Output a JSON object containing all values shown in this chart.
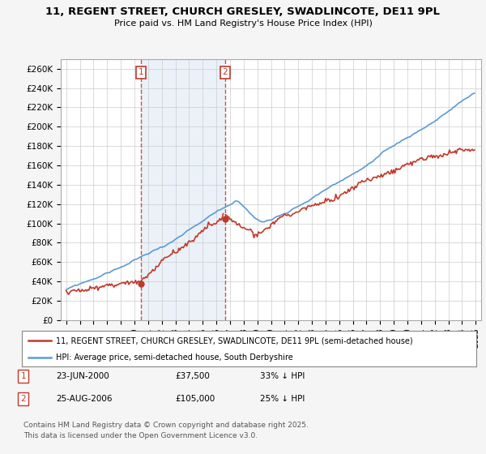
{
  "title": "11, REGENT STREET, CHURCH GRESLEY, SWADLINCOTE, DE11 9PL",
  "subtitle": "Price paid vs. HM Land Registry's House Price Index (HPI)",
  "ylabel_ticks": [
    "£0",
    "£20K",
    "£40K",
    "£60K",
    "£80K",
    "£100K",
    "£120K",
    "£140K",
    "£160K",
    "£180K",
    "£200K",
    "£220K",
    "£240K",
    "£260K"
  ],
  "ytick_values": [
    0,
    20000,
    40000,
    60000,
    80000,
    100000,
    120000,
    140000,
    160000,
    180000,
    200000,
    220000,
    240000,
    260000
  ],
  "ylim": [
    0,
    270000
  ],
  "hpi_color": "#5b9bd5",
  "hpi_fill_color": "#dce9f5",
  "price_color": "#c0392b",
  "sale1_year": 2000.47,
  "sale1_price": 37500,
  "sale2_year": 2006.64,
  "sale2_price": 105000,
  "sale1_date": "23-JUN-2000",
  "sale1_price_str": "£37,500",
  "sale1_hpi": "33% ↓ HPI",
  "sale2_date": "25-AUG-2006",
  "sale2_price_str": "£105,000",
  "sale2_hpi": "25% ↓ HPI",
  "legend_line1": "11, REGENT STREET, CHURCH GRESLEY, SWADLINCOTE, DE11 9PL (semi-detached house)",
  "legend_line2": "HPI: Average price, semi-detached house, South Derbyshire",
  "footer": "Contains HM Land Registry data © Crown copyright and database right 2025.\nThis data is licensed under the Open Government Licence v3.0.",
  "bg_color": "#f5f5f5",
  "plot_bg": "#ffffff",
  "xlim_left": 1994.6,
  "xlim_right": 2025.4
}
